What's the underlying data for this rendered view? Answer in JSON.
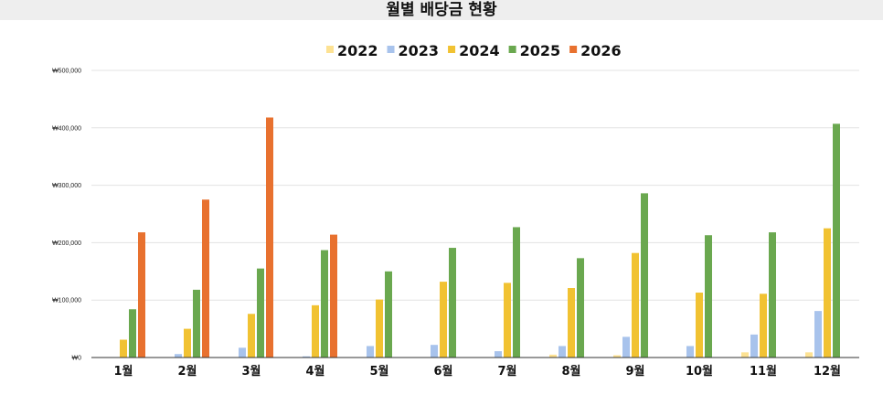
{
  "title": "월별 배당금 현황",
  "chart_data": {
    "type": "bar",
    "title": "월별 배당금 현황",
    "categories": [
      "1월",
      "2월",
      "3월",
      "4월",
      "5월",
      "6월",
      "7월",
      "8월",
      "9월",
      "10월",
      "11월",
      "12월"
    ],
    "series": [
      {
        "name": "2022",
        "color": "#fde293",
        "values": [
          0,
          0,
          0,
          0,
          0,
          0,
          0,
          5000,
          4000,
          0,
          9000,
          9000
        ]
      },
      {
        "name": "2023",
        "color": "#a8c3ec",
        "values": [
          0,
          6000,
          17000,
          2000,
          20000,
          22000,
          11000,
          20000,
          36000,
          20000,
          40000,
          81000
        ]
      },
      {
        "name": "2024",
        "color": "#f1c232",
        "values": [
          31000,
          50000,
          76000,
          91000,
          101000,
          132000,
          130000,
          121000,
          182000,
          113000,
          111000,
          225000
        ]
      },
      {
        "name": "2025",
        "color": "#6aa84f",
        "values": [
          84000,
          118000,
          155000,
          187000,
          150000,
          191000,
          227000,
          173000,
          286000,
          213000,
          218000,
          407000
        ]
      },
      {
        "name": "2026",
        "color": "#e8712f",
        "values": [
          218000,
          275000,
          418000,
          214000,
          0,
          0,
          0,
          0,
          0,
          0,
          0,
          0
        ]
      }
    ],
    "ylim": [
      0,
      500000
    ],
    "yticks": [
      0,
      100000,
      200000,
      300000,
      400000,
      500000
    ],
    "ytick_labels": [
      "₩0",
      "₩100,000",
      "₩200,000",
      "₩300,000",
      "₩400,000",
      "₩500,000"
    ],
    "legend_position": "top-center",
    "grid": true
  }
}
